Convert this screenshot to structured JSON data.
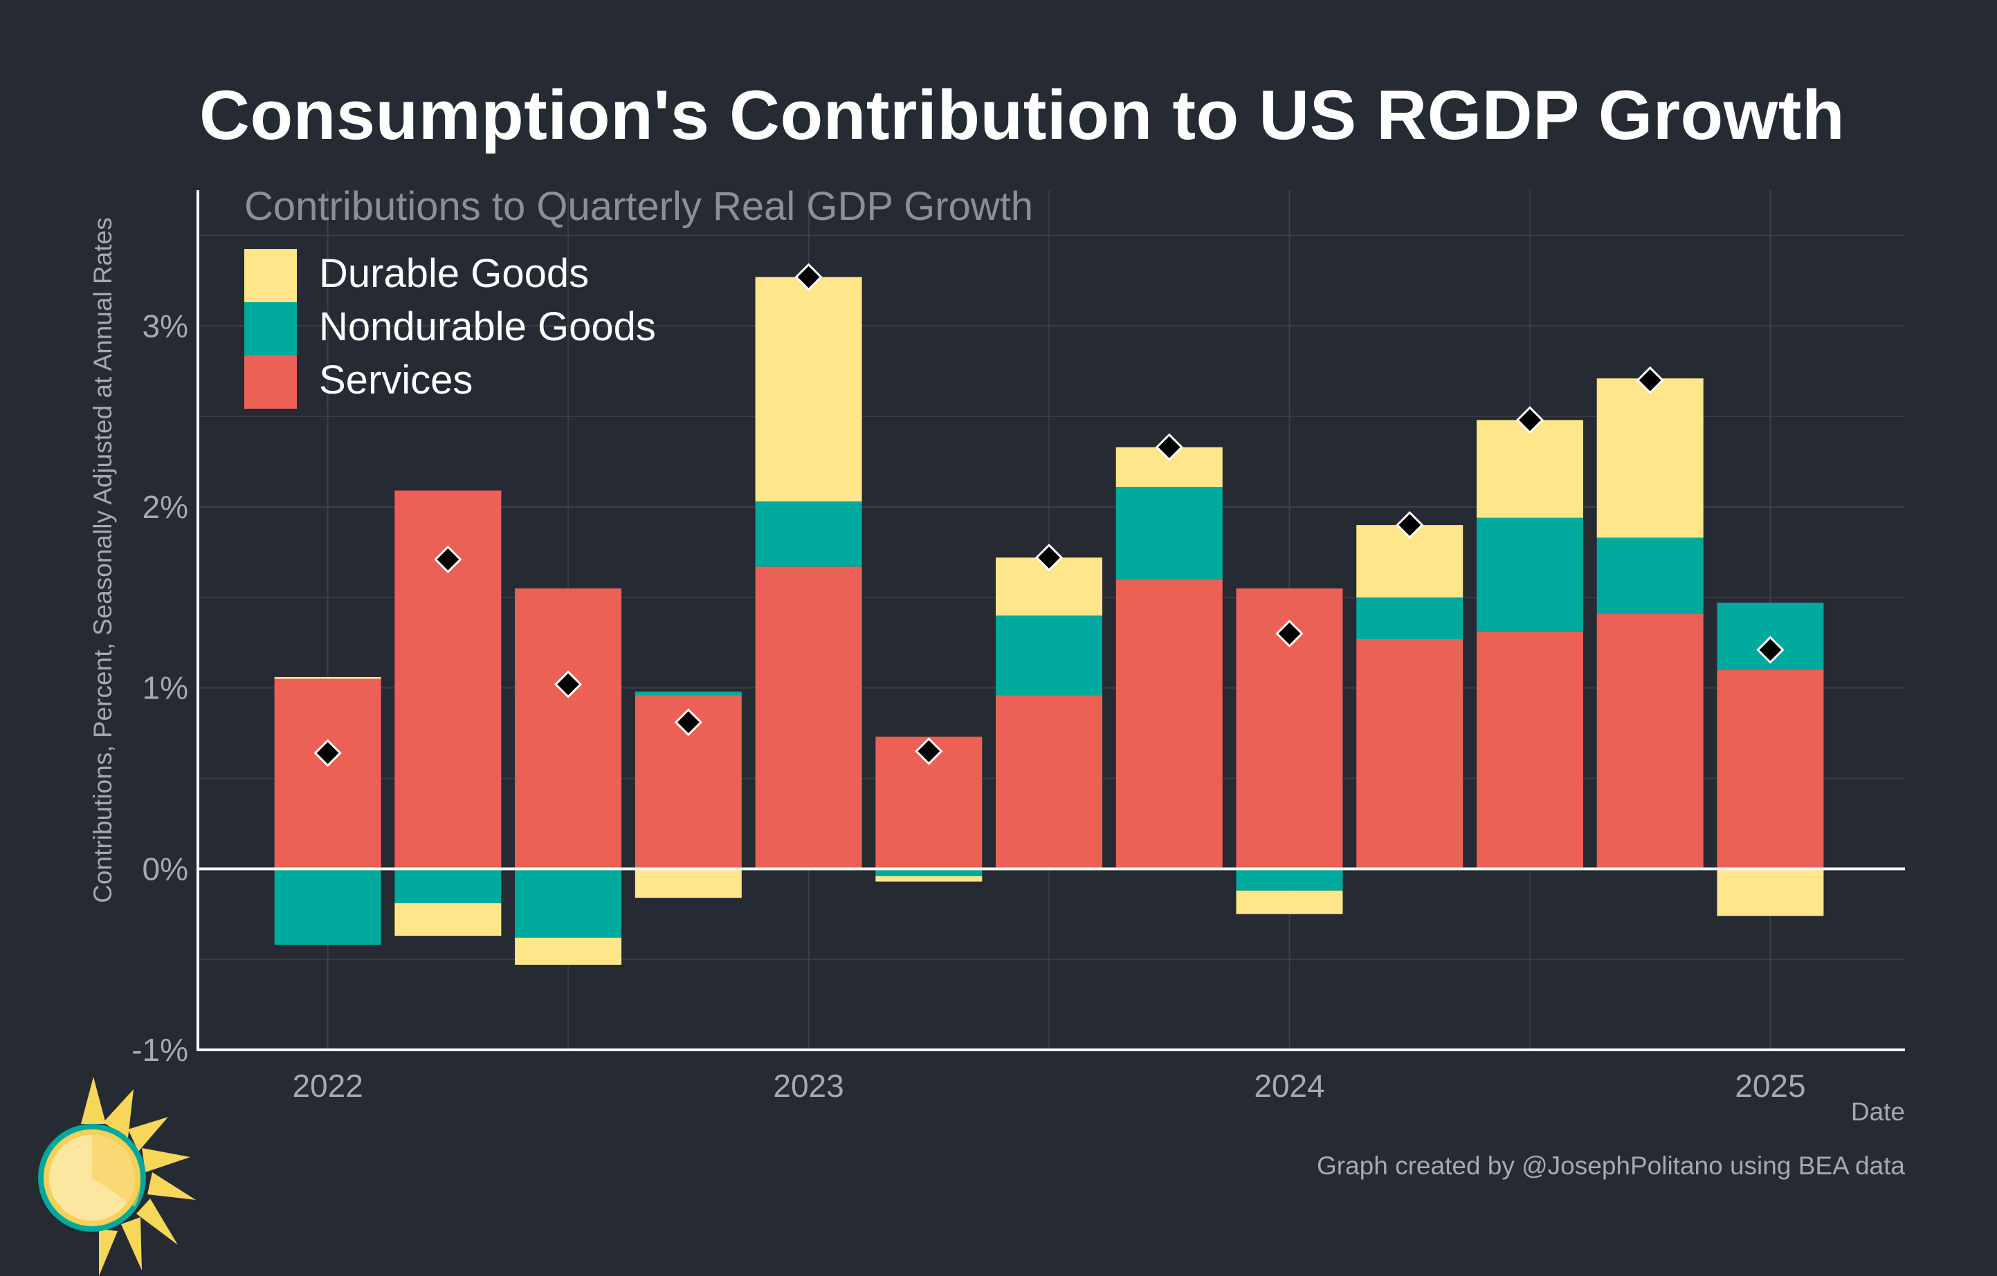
{
  "title": "Consumption's Contribution to US RGDP Growth",
  "credit": "Graph created by @JosephPolitano using BEA data",
  "colors": {
    "background": "#252a33",
    "durable": "#ffe68a",
    "nondurable": "#00a99d",
    "services": "#ec6156",
    "total_marker": "#000000",
    "grid": "#3b404a",
    "axis_text": "#a5a9b0"
  },
  "chart_data": {
    "type": "bar",
    "stacked": true,
    "subtitle": "Contributions to Quarterly Real GDP Growth",
    "xlabel": "Date",
    "ylabel": "Contributions, Percent, Seasonally Adjusted at Annual Rates",
    "ylim": [
      -1,
      3.75
    ],
    "yticks": [
      "-1%",
      "0%",
      "1%",
      "2%",
      "3%"
    ],
    "ytick_values": [
      -1,
      0,
      1,
      2,
      3
    ],
    "xtick_labels": [
      "2022",
      "2023",
      "2024",
      "2025"
    ],
    "xtick_values": [
      2022.0,
      2023.0,
      2024.0,
      2025.0
    ],
    "x": [
      2022.0,
      2022.25,
      2022.5,
      2022.75,
      2023.0,
      2023.25,
      2023.5,
      2023.75,
      2024.0,
      2024.25,
      2024.5,
      2024.75,
      2025.0
    ],
    "categories": [
      "2022 Q1",
      "2022 Q2",
      "2022 Q3",
      "2022 Q4",
      "2023 Q1",
      "2023 Q2",
      "2023 Q3",
      "2023 Q4",
      "2024 Q1",
      "2024 Q2",
      "2024 Q3",
      "2024 Q4",
      "2025 Q1"
    ],
    "series": [
      {
        "name": "Durable Goods",
        "color_key": "durable",
        "values": [
          0.01,
          -0.18,
          -0.15,
          -0.16,
          1.24,
          -0.03,
          0.32,
          0.22,
          -0.13,
          0.4,
          0.54,
          0.88,
          -0.26
        ]
      },
      {
        "name": "Nondurable Goods",
        "color_key": "nondurable",
        "values": [
          -0.42,
          -0.19,
          -0.38,
          0.02,
          0.36,
          -0.04,
          0.44,
          0.51,
          -0.12,
          0.23,
          0.63,
          0.42,
          0.37
        ]
      },
      {
        "name": "Services",
        "color_key": "services",
        "values": [
          1.05,
          2.09,
          1.55,
          0.96,
          1.67,
          0.73,
          0.96,
          1.6,
          1.55,
          1.27,
          1.31,
          1.41,
          1.1
        ]
      }
    ],
    "totals": [
      0.64,
      1.71,
      1.02,
      0.81,
      3.27,
      0.65,
      1.72,
      2.33,
      1.3,
      1.9,
      2.48,
      2.7,
      1.21
    ],
    "legend_position": "top-left",
    "grid": true
  }
}
